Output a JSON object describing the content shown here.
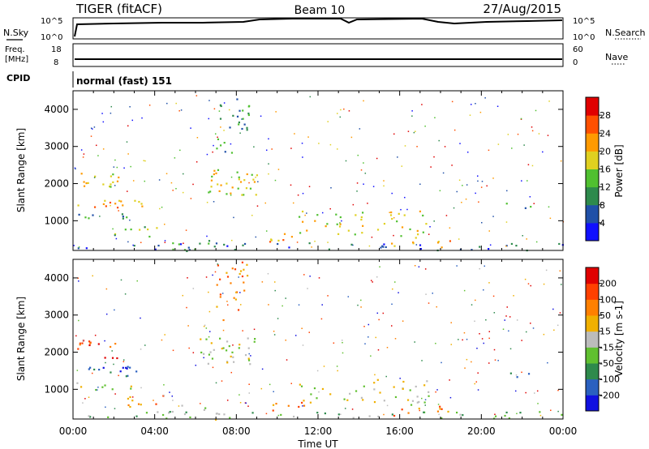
{
  "header": {
    "radar": "TIGER (fitACF)",
    "beam": "Beam 10",
    "date": "27/Aug/2015"
  },
  "noise_panel": {
    "left_label": "N.Sky",
    "right_label": "N.Search",
    "left_ticks": [
      "10^5",
      "10^0"
    ],
    "right_ticks": [
      "10^5",
      "10^0"
    ]
  },
  "freq_panel": {
    "left_label_top": "Freq.",
    "left_label_bottom": "[MHz]",
    "left_ticks": [
      "18",
      "8"
    ],
    "right_label": "Nave",
    "right_ticks": [
      "60",
      "0"
    ]
  },
  "cpid": {
    "label": "CPID",
    "value": "normal (fast) 151"
  },
  "chart_data": [
    {
      "type": "heatmap",
      "parameter": "power",
      "ylabel": "Slant Range [km]",
      "ylim": [
        200,
        4500
      ],
      "y_ticks": [
        1000,
        2000,
        3000,
        4000
      ],
      "x_ticks": [
        "00:00",
        "04:00",
        "08:00",
        "12:00",
        "16:00",
        "20:00",
        "00:00"
      ],
      "xlabel": "Time UT",
      "colorbar": {
        "label": "Power [dB]",
        "ticks": [
          "4",
          "8",
          "12",
          "16",
          "20",
          "24",
          "28"
        ],
        "colors": [
          "#1010ff",
          "#2050a8",
          "#2e8a4c",
          "#50c030",
          "#e0d020",
          "#ff9a00",
          "#ff5000",
          "#e00000"
        ]
      }
    },
    {
      "type": "heatmap",
      "parameter": "velocity",
      "ylabel": "Slant Range [km]",
      "ylim": [
        200,
        4500
      ],
      "y_ticks": [
        1000,
        2000,
        3000,
        4000
      ],
      "x_ticks": [
        "00:00",
        "04:00",
        "08:00",
        "12:00",
        "16:00",
        "20:00",
        "00:00"
      ],
      "xlabel": "Time UT",
      "colorbar": {
        "label": "Velocity [m s-1]",
        "ticks": [
          "200",
          "100",
          "50",
          "15",
          "-15",
          "-50",
          "-100",
          "-200"
        ],
        "colors": [
          "#1010e0",
          "#2a60c0",
          "#2e8a4c",
          "#60c030",
          "#bcbcbc",
          "#f0b000",
          "#ff8000",
          "#ff4000",
          "#e00000"
        ]
      }
    }
  ]
}
